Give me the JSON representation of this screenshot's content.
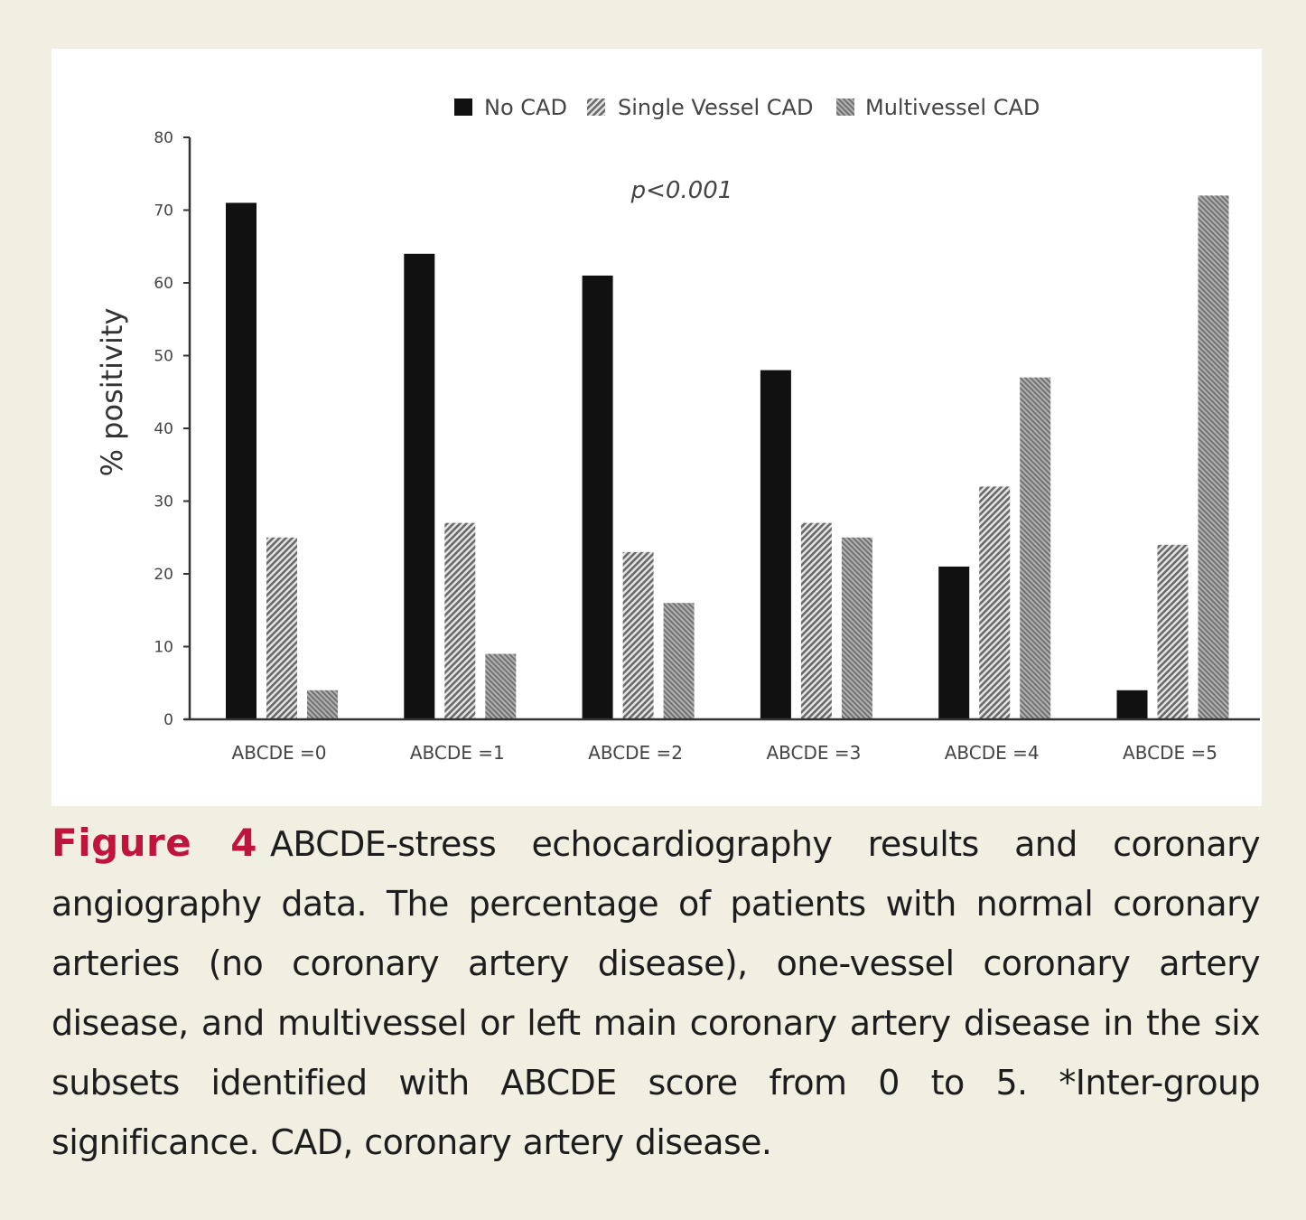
{
  "colors": {
    "page_background": "#f1efe1",
    "chart_background": "#ffffff",
    "no_cad": "#111111",
    "single_vessel": "#9a9a9a",
    "multivessel": "#8c8c8c",
    "axis": "#333333",
    "figure_label": "#c0143c"
  },
  "chart_data": {
    "type": "bar",
    "title": "",
    "xlabel": "",
    "ylabel": "% positivity",
    "ylim": [
      0,
      80
    ],
    "yticks": [
      0,
      10,
      20,
      30,
      40,
      50,
      60,
      70,
      80
    ],
    "grid": false,
    "legend_position": "top",
    "annotation": "p<0.001",
    "categories": [
      "ABCDE =0",
      "ABCDE =1",
      "ABCDE =2",
      "ABCDE =3",
      "ABCDE =4",
      "ABCDE =5"
    ],
    "series": [
      {
        "name": "No CAD",
        "pattern": "solid",
        "values": [
          71,
          64,
          61,
          48,
          21,
          4
        ]
      },
      {
        "name": "Single Vessel CAD",
        "pattern": "diagonal-hatch",
        "values": [
          25,
          27,
          23,
          27,
          32,
          24
        ]
      },
      {
        "name": "Multivessel CAD",
        "pattern": "fine-hatch",
        "values": [
          4,
          9,
          16,
          25,
          47,
          72
        ]
      }
    ]
  },
  "caption": {
    "label": "Figure 4",
    "text": "ABCDE-stress echocardiography results and coronary angiography data. The percentage of patients with normal coronary arteries (no coronary artery disease), one-vessel coronary artery disease, and multivessel or left main coronary artery disease in the six subsets identified with ABCDE score from 0 to 5. *Inter-group significance. CAD, coronary artery disease."
  }
}
